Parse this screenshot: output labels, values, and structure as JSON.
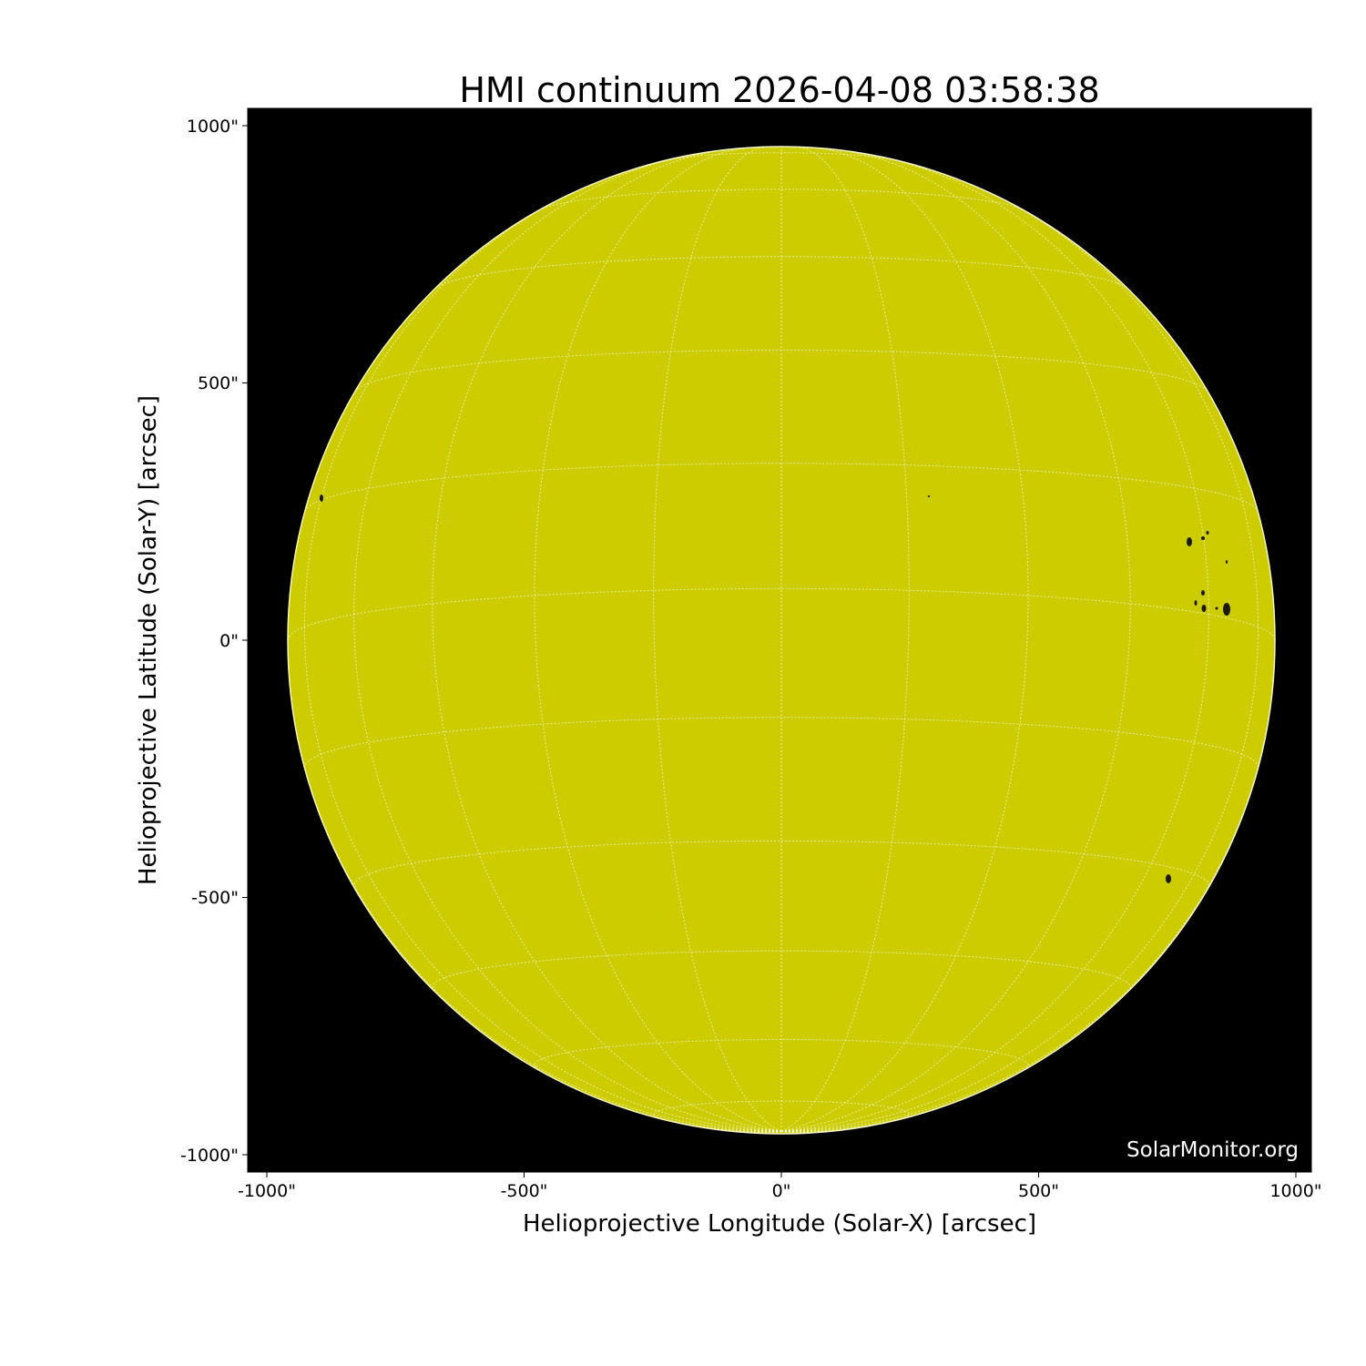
{
  "title": "HMI continuum 2026-04-08 03:58:38",
  "xlabel": "Helioprojective Longitude (Solar-X) [arcsec]",
  "ylabel": "Helioprojective Latitude (Solar-Y) [arcsec]",
  "xticks": [
    "-1000\"",
    "-500\"",
    "0\"",
    "500\"",
    "1000\""
  ],
  "yticks": [
    "1000\"",
    "500\"",
    "0\"",
    "-500\"",
    "-1000\""
  ],
  "watermark": "SolarMonitor.org",
  "colors": {
    "disk": "#cccc00",
    "background": "#000000",
    "grid": "#ffffff",
    "sunspot": "#1a1a00"
  }
}
